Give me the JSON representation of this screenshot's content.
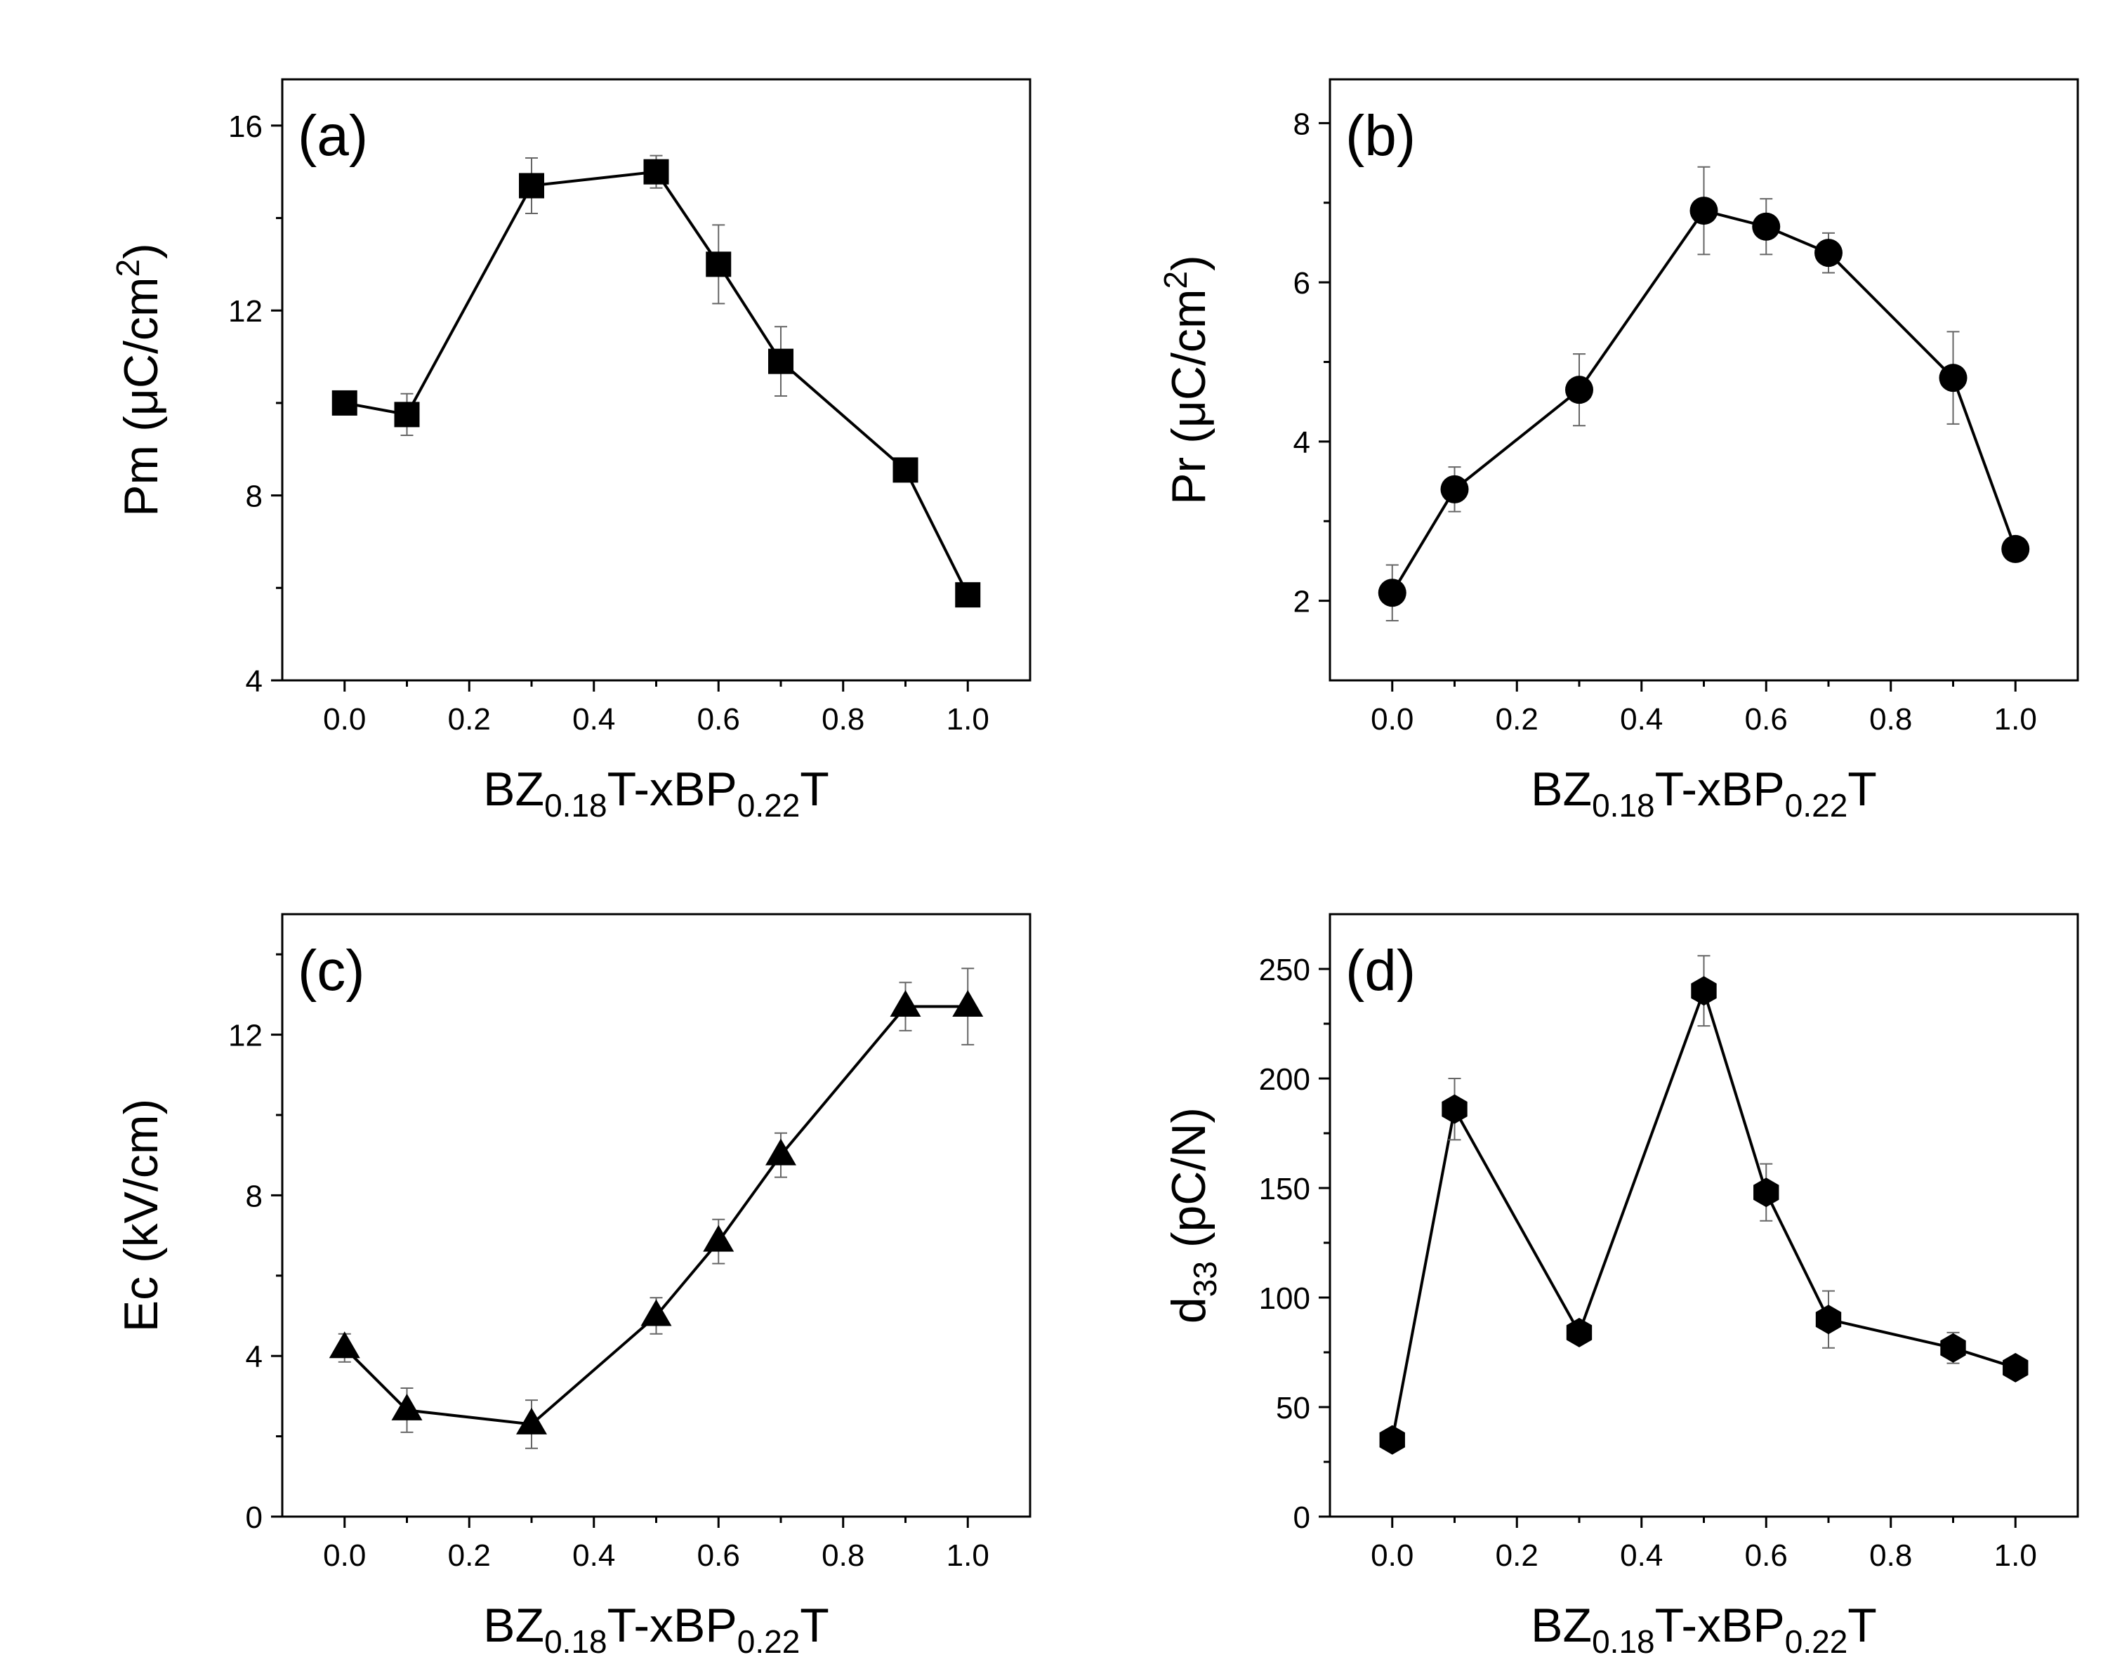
{
  "chart_data": [
    {
      "type": "line",
      "panel_label": "(a)",
      "ylabel": "Pm (μC/cm²)",
      "ylabel_parts": {
        "main": "Pm (μC/cm",
        "sup": "2",
        "end": ")"
      },
      "xlabel": "BZ0.18T-xBP0.22T",
      "xlabel_parts": {
        "a": "BZ",
        "sub1": "0.18",
        "b": "T-xBP",
        "sub2": "0.22",
        "c": "T"
      },
      "xlim": [
        -0.1,
        1.1
      ],
      "ylim": [
        4,
        17
      ],
      "xticks": [
        0.0,
        0.2,
        0.4,
        0.6,
        0.8,
        1.0
      ],
      "xtick_labels": [
        "0.0",
        "0.2",
        "0.4",
        "0.6",
        "0.8",
        "1.0"
      ],
      "yticks": [
        4,
        8,
        12,
        16
      ],
      "ytick_labels": [
        "4",
        "8",
        "12",
        "16"
      ],
      "marker": "square",
      "x": [
        0.0,
        0.1,
        0.3,
        0.5,
        0.6,
        0.7,
        0.9,
        1.0
      ],
      "y": [
        10.0,
        9.75,
        14.7,
        15.0,
        13.0,
        10.9,
        8.55,
        5.85
      ],
      "err": [
        0.2,
        0.45,
        0.6,
        0.35,
        0.85,
        0.75,
        0.15,
        0.15
      ]
    },
    {
      "type": "line",
      "panel_label": "(b)",
      "ylabel": "Pr (μC/cm²)",
      "ylabel_parts": {
        "main": "Pr (μC/cm",
        "sup": "2",
        "end": ")"
      },
      "xlabel": "BZ0.18T-xBP0.22T",
      "xlabel_parts": {
        "a": "BZ",
        "sub1": "0.18",
        "b": "T-xBP",
        "sub2": "0.22",
        "c": "T"
      },
      "xlim": [
        -0.1,
        1.1
      ],
      "ylim": [
        1,
        8.55
      ],
      "xticks": [
        0.0,
        0.2,
        0.4,
        0.6,
        0.8,
        1.0
      ],
      "xtick_labels": [
        "0.0",
        "0.2",
        "0.4",
        "0.6",
        "0.8",
        "1.0"
      ],
      "yticks": [
        2,
        4,
        6,
        8
      ],
      "ytick_labels": [
        "2",
        "4",
        "6",
        "8"
      ],
      "marker": "circle",
      "x": [
        0.0,
        0.1,
        0.3,
        0.5,
        0.6,
        0.7,
        0.9,
        1.0
      ],
      "y": [
        2.1,
        3.4,
        4.65,
        6.9,
        6.7,
        6.37,
        4.8,
        2.65
      ],
      "err": [
        0.35,
        0.28,
        0.45,
        0.55,
        0.35,
        0.25,
        0.58,
        0.1
      ]
    },
    {
      "type": "line",
      "panel_label": "(c)",
      "ylabel": "Ec (kV/cm)",
      "ylabel_parts": {
        "main": "Ec (kV/cm)",
        "sup": "",
        "end": ""
      },
      "xlabel": "BZ0.18T-xBP0.22T",
      "xlabel_parts": {
        "a": "BZ",
        "sub1": "0.18",
        "b": "T-xBP",
        "sub2": "0.22",
        "c": "T"
      },
      "xlim": [
        -0.1,
        1.1
      ],
      "ylim": [
        0,
        15
      ],
      "xticks": [
        0.0,
        0.2,
        0.4,
        0.6,
        0.8,
        1.0
      ],
      "xtick_labels": [
        "0.0",
        "0.2",
        "0.4",
        "0.6",
        "0.8",
        "1.0"
      ],
      "yticks": [
        0,
        4,
        8,
        12
      ],
      "ytick_labels": [
        "0",
        "4",
        "8",
        "12"
      ],
      "marker": "triangle",
      "x": [
        0.0,
        0.1,
        0.3,
        0.5,
        0.6,
        0.7,
        0.9,
        1.0
      ],
      "y": [
        4.2,
        2.65,
        2.3,
        5.0,
        6.85,
        9.0,
        12.7,
        12.7
      ],
      "err": [
        0.35,
        0.55,
        0.6,
        0.45,
        0.55,
        0.55,
        0.6,
        0.95
      ]
    },
    {
      "type": "line",
      "panel_label": "(d)",
      "ylabel": "d33 (pC/N)",
      "ylabel_parts": {
        "main": "d",
        "sub": "33",
        "end": " (pC/N)"
      },
      "xlabel": "BZ0.18T-xBP0.22T",
      "xlabel_parts": {
        "a": "BZ",
        "sub1": "0.18",
        "b": "T-xBP",
        "sub2": "0.22",
        "c": "T"
      },
      "xlim": [
        -0.1,
        1.1
      ],
      "ylim": [
        0,
        275
      ],
      "xticks": [
        0.0,
        0.2,
        0.4,
        0.6,
        0.8,
        1.0
      ],
      "xtick_labels": [
        "0.0",
        "0.2",
        "0.4",
        "0.6",
        "0.8",
        "1.0"
      ],
      "yticks": [
        0,
        50,
        100,
        150,
        200,
        250
      ],
      "ytick_labels": [
        "0",
        "50",
        "100",
        "150",
        "200",
        "250"
      ],
      "marker": "hexagon",
      "x": [
        0.0,
        0.1,
        0.3,
        0.5,
        0.6,
        0.7,
        0.9,
        1.0
      ],
      "y": [
        35,
        186,
        84,
        240,
        148,
        90,
        77,
        68
      ],
      "err": [
        3,
        14,
        4,
        16,
        13,
        13,
        7,
        3
      ]
    }
  ]
}
